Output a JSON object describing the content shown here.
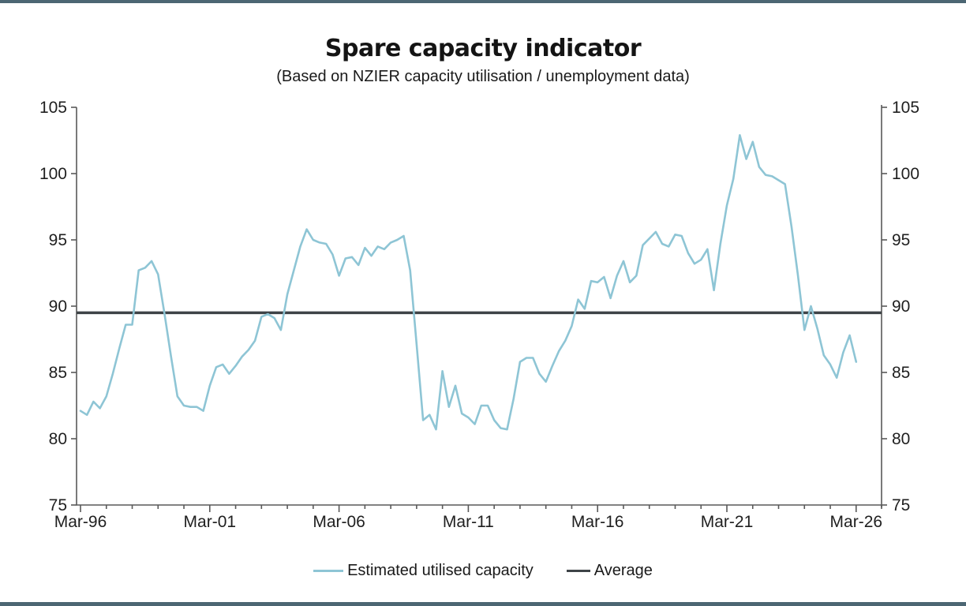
{
  "page": {
    "title": "Spare capacity indicator",
    "subtitle": "(Based on NZIER capacity utilisation / unemployment data)"
  },
  "colors": {
    "series_line": "#8ec5d5",
    "average_line": "#3e4347",
    "axis": "#595959",
    "tick_text": "#1f1f1f",
    "edge_bar": "#4c6673"
  },
  "chart_data": {
    "type": "line",
    "title": "Spare capacity indicator",
    "subtitle": "(Based on NZIER capacity utilisation / unemployment data)",
    "x_start": "Mar-1996",
    "x_step_months": 3,
    "x_tick_labels": [
      "Mar-96",
      "Mar-01",
      "Mar-06",
      "Mar-11",
      "Mar-16",
      "Mar-21",
      "Mar-26"
    ],
    "y_ticks": [
      75,
      80,
      85,
      90,
      95,
      100,
      105
    ],
    "ylim": [
      75,
      105
    ],
    "grid": false,
    "legend_position": "bottom",
    "series": [
      {
        "name": "Estimated utilised capacity",
        "color": "#8ec5d5",
        "values": [
          82.1,
          81.8,
          82.8,
          82.3,
          83.2,
          84.9,
          86.8,
          88.6,
          88.6,
          92.7,
          92.9,
          93.4,
          92.4,
          89.4,
          86.2,
          83.2,
          82.5,
          82.4,
          82.4,
          82.1,
          84.0,
          85.4,
          85.6,
          84.9,
          85.5,
          86.2,
          86.7,
          87.4,
          89.2,
          89.4,
          89.1,
          88.2,
          90.9,
          92.7,
          94.5,
          95.8,
          95.0,
          94.8,
          94.7,
          93.9,
          92.3,
          93.6,
          93.7,
          93.1,
          94.4,
          93.8,
          94.5,
          94.3,
          94.8,
          95.0,
          95.3,
          92.7,
          87.1,
          81.4,
          81.8,
          80.7,
          85.1,
          82.4,
          84.0,
          81.9,
          81.6,
          81.1,
          82.5,
          82.5,
          81.4,
          80.8,
          80.7,
          83.0,
          85.8,
          86.1,
          86.1,
          84.9,
          84.3,
          85.5,
          86.6,
          87.4,
          88.5,
          90.5,
          89.8,
          91.9,
          91.8,
          92.2,
          90.6,
          92.3,
          93.4,
          91.8,
          92.3,
          94.6,
          95.1,
          95.6,
          94.7,
          94.5,
          95.4,
          95.3,
          94.0,
          93.2,
          93.5,
          94.3,
          91.2,
          94.7,
          97.6,
          99.6,
          102.9,
          101.1,
          102.4,
          100.5,
          99.9,
          99.8,
          99.5,
          99.2,
          96.0,
          92.3,
          88.2,
          90.0,
          88.3,
          86.3,
          85.6,
          84.6,
          86.5,
          87.8,
          85.8
        ]
      },
      {
        "name": "Average",
        "type": "hline",
        "color": "#3e4347",
        "value": 89.5
      }
    ]
  }
}
